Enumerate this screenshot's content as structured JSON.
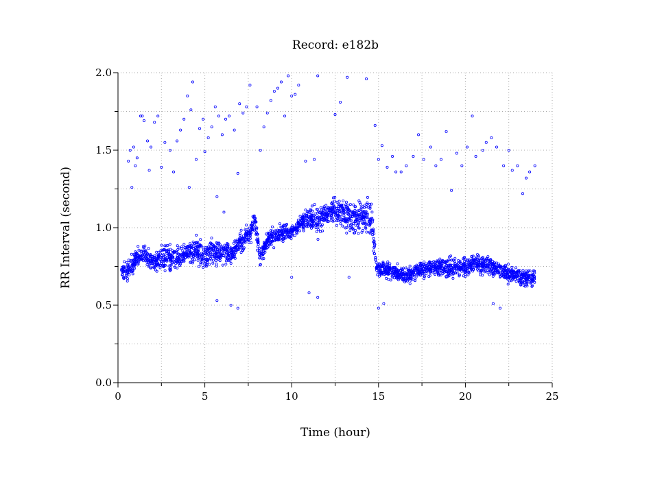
{
  "chart_data": {
    "type": "scatter",
    "title": "Record:  e182b",
    "xlabel": "Time (hour)",
    "ylabel": "RR Interval (second)",
    "xlim": [
      0,
      25
    ],
    "ylim": [
      0,
      2.0
    ],
    "xticks": [
      "0",
      "5",
      "10",
      "15",
      "20",
      "25"
    ],
    "xtick_values": [
      0,
      5,
      10,
      15,
      20,
      25
    ],
    "yticks": [
      "0.0",
      "0.5",
      "1.0",
      "1.5",
      "2.0"
    ],
    "ytick_values": [
      0,
      0.5,
      1.0,
      1.5,
      2.0
    ],
    "grid": true,
    "marker_color": "#0000ff",
    "band_description_points": [
      [
        0.2,
        0.66,
        0.8
      ],
      [
        0.6,
        0.62,
        0.82
      ],
      [
        1.0,
        0.72,
        0.88
      ],
      [
        1.5,
        0.74,
        0.92
      ],
      [
        2.0,
        0.7,
        0.86
      ],
      [
        2.5,
        0.7,
        0.9
      ],
      [
        3.0,
        0.68,
        0.92
      ],
      [
        3.5,
        0.72,
        0.9
      ],
      [
        4.0,
        0.74,
        0.92
      ],
      [
        4.5,
        0.74,
        0.96
      ],
      [
        5.0,
        0.7,
        0.94
      ],
      [
        5.5,
        0.72,
        0.96
      ],
      [
        6.0,
        0.74,
        0.94
      ],
      [
        6.5,
        0.74,
        0.92
      ],
      [
        7.0,
        0.8,
        0.98
      ],
      [
        7.5,
        0.84,
        1.06
      ],
      [
        7.9,
        0.92,
        1.14
      ],
      [
        8.2,
        0.72,
        0.86
      ],
      [
        8.6,
        0.84,
        1.0
      ],
      [
        9.0,
        0.86,
        1.04
      ],
      [
        9.5,
        0.88,
        1.06
      ],
      [
        10.0,
        0.92,
        1.02
      ],
      [
        10.5,
        0.96,
        1.1
      ],
      [
        11.0,
        0.98,
        1.14
      ],
      [
        11.5,
        0.9,
        1.18
      ],
      [
        12.0,
        1.0,
        1.2
      ],
      [
        12.5,
        1.0,
        1.22
      ],
      [
        13.0,
        0.96,
        1.22
      ],
      [
        13.5,
        0.92,
        1.2
      ],
      [
        14.0,
        0.94,
        1.22
      ],
      [
        14.6,
        0.9,
        1.22
      ],
      [
        14.9,
        0.66,
        0.8
      ],
      [
        15.5,
        0.66,
        0.8
      ],
      [
        16.0,
        0.64,
        0.78
      ],
      [
        16.5,
        0.62,
        0.76
      ],
      [
        17.0,
        0.64,
        0.78
      ],
      [
        17.5,
        0.66,
        0.8
      ],
      [
        18.0,
        0.66,
        0.82
      ],
      [
        18.5,
        0.68,
        0.82
      ],
      [
        19.0,
        0.64,
        0.84
      ],
      [
        19.5,
        0.66,
        0.82
      ],
      [
        20.0,
        0.66,
        0.84
      ],
      [
        20.5,
        0.68,
        0.86
      ],
      [
        21.0,
        0.68,
        0.84
      ],
      [
        21.5,
        0.66,
        0.82
      ],
      [
        22.0,
        0.66,
        0.8
      ],
      [
        22.5,
        0.62,
        0.78
      ],
      [
        23.0,
        0.62,
        0.76
      ],
      [
        23.5,
        0.6,
        0.76
      ],
      [
        24.0,
        0.62,
        0.74
      ]
    ],
    "outliers": [
      [
        0.6,
        1.43
      ],
      [
        0.7,
        1.5
      ],
      [
        0.8,
        1.26
      ],
      [
        0.9,
        1.52
      ],
      [
        1.0,
        1.4
      ],
      [
        1.1,
        1.45
      ],
      [
        1.3,
        1.72
      ],
      [
        1.4,
        1.72
      ],
      [
        1.5,
        1.69
      ],
      [
        1.7,
        1.56
      ],
      [
        1.8,
        1.37
      ],
      [
        1.9,
        1.52
      ],
      [
        2.1,
        1.68
      ],
      [
        2.3,
        1.72
      ],
      [
        2.5,
        1.39
      ],
      [
        2.7,
        1.55
      ],
      [
        3.0,
        1.5
      ],
      [
        3.2,
        1.36
      ],
      [
        3.4,
        1.56
      ],
      [
        3.6,
        1.63
      ],
      [
        3.8,
        1.7
      ],
      [
        4.0,
        1.85
      ],
      [
        4.1,
        1.26
      ],
      [
        4.2,
        1.76
      ],
      [
        4.3,
        1.94
      ],
      [
        4.5,
        1.44
      ],
      [
        4.7,
        1.64
      ],
      [
        4.9,
        1.7
      ],
      [
        5.0,
        1.49
      ],
      [
        5.2,
        1.58
      ],
      [
        5.4,
        1.65
      ],
      [
        5.6,
        1.78
      ],
      [
        5.7,
        1.2
      ],
      [
        5.8,
        1.72
      ],
      [
        6.0,
        1.6
      ],
      [
        6.1,
        1.1
      ],
      [
        6.2,
        1.7
      ],
      [
        6.4,
        1.72
      ],
      [
        6.5,
        0.5
      ],
      [
        6.7,
        1.63
      ],
      [
        6.9,
        1.35
      ],
      [
        7.0,
        1.8
      ],
      [
        7.2,
        1.74
      ],
      [
        7.4,
        1.78
      ],
      [
        7.6,
        1.92
      ],
      [
        8.0,
        1.78
      ],
      [
        8.2,
        1.5
      ],
      [
        8.4,
        1.65
      ],
      [
        8.6,
        1.74
      ],
      [
        8.8,
        1.82
      ],
      [
        9.0,
        1.88
      ],
      [
        9.2,
        1.9
      ],
      [
        9.4,
        1.94
      ],
      [
        9.6,
        1.72
      ],
      [
        9.8,
        1.98
      ],
      [
        10.0,
        1.85
      ],
      [
        10.2,
        1.86
      ],
      [
        10.4,
        1.92
      ],
      [
        10.8,
        1.43
      ],
      [
        11.0,
        0.58
      ],
      [
        11.3,
        1.44
      ],
      [
        11.5,
        1.98
      ],
      [
        11.5,
        0.55
      ],
      [
        12.5,
        1.73
      ],
      [
        12.8,
        1.81
      ],
      [
        13.2,
        1.97
      ],
      [
        14.3,
        1.96
      ],
      [
        14.8,
        1.66
      ],
      [
        15.0,
        1.44
      ],
      [
        15.2,
        1.53
      ],
      [
        15.5,
        1.39
      ],
      [
        15.8,
        1.46
      ],
      [
        16.0,
        1.36
      ],
      [
        16.3,
        1.36
      ],
      [
        16.6,
        1.4
      ],
      [
        17.0,
        1.46
      ],
      [
        17.3,
        1.6
      ],
      [
        17.6,
        1.44
      ],
      [
        18.0,
        1.52
      ],
      [
        18.3,
        1.4
      ],
      [
        18.6,
        1.44
      ],
      [
        18.9,
        1.62
      ],
      [
        19.2,
        1.24
      ],
      [
        19.5,
        1.48
      ],
      [
        19.8,
        1.4
      ],
      [
        20.1,
        1.52
      ],
      [
        20.4,
        1.72
      ],
      [
        20.6,
        1.46
      ],
      [
        21.0,
        1.5
      ],
      [
        21.2,
        1.55
      ],
      [
        21.5,
        1.58
      ],
      [
        21.6,
        0.51
      ],
      [
        21.8,
        1.52
      ],
      [
        22.0,
        0.48
      ],
      [
        22.2,
        1.4
      ],
      [
        22.5,
        1.5
      ],
      [
        22.7,
        1.37
      ],
      [
        23.0,
        1.4
      ],
      [
        23.3,
        1.22
      ],
      [
        23.5,
        1.32
      ],
      [
        23.7,
        1.36
      ],
      [
        24.0,
        1.4
      ],
      [
        5.7,
        0.53
      ],
      [
        6.9,
        0.48
      ],
      [
        15.0,
        0.48
      ],
      [
        15.3,
        0.51
      ],
      [
        13.3,
        0.68
      ],
      [
        10.0,
        0.68
      ]
    ]
  }
}
